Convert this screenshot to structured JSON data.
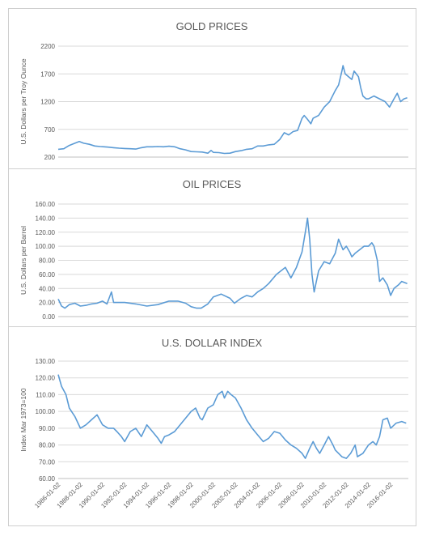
{
  "chart_data": [
    {
      "type": "line",
      "title": "GOLD PRICES",
      "ylabel": "U.S. Dollars per Troy Ounce",
      "ylim": [
        200,
        2200
      ],
      "yticks": [
        "200",
        "700",
        "1200",
        "1700",
        "2200"
      ],
      "xlim": [
        1986.0,
        2017.6
      ],
      "grid": true,
      "color": "#5b9bd5",
      "series": [
        {
          "x": [
            1986.0,
            1986.5,
            1987.0,
            1987.5,
            1987.9,
            1988.3,
            1988.8,
            1989.3,
            1989.8,
            1990.5,
            1991.0,
            1991.5,
            1992.0,
            1992.5,
            1993.0,
            1993.5,
            1994.0,
            1994.5,
            1995.0,
            1995.5,
            1996.0,
            1996.5,
            1997.0,
            1997.5,
            1998.0,
            1998.5,
            1999.0,
            1999.5,
            1999.8,
            2000.0,
            2000.5,
            2001.0,
            2001.5,
            2002.0,
            2002.5,
            2003.0,
            2003.5,
            2004.0,
            2004.5,
            2005.0,
            2005.5,
            2006.0,
            2006.4,
            2006.8,
            2007.2,
            2007.6,
            2008.0,
            2008.2,
            2008.5,
            2008.8,
            2009.0,
            2009.5,
            2010.0,
            2010.5,
            2011.0,
            2011.3,
            2011.6,
            2011.7,
            2011.9,
            2012.2,
            2012.5,
            2012.7,
            2012.9,
            2013.1,
            2013.3,
            2013.5,
            2013.8,
            2014.0,
            2014.5,
            2015.0,
            2015.5,
            2015.9,
            2016.3,
            2016.6,
            2016.9,
            2017.2,
            2017.5
          ],
          "y": [
            340,
            350,
            410,
            450,
            480,
            450,
            430,
            400,
            390,
            380,
            370,
            360,
            355,
            350,
            345,
            370,
            385,
            385,
            390,
            385,
            395,
            385,
            350,
            330,
            300,
            295,
            290,
            270,
            320,
            285,
            280,
            265,
            270,
            300,
            315,
            340,
            350,
            400,
            400,
            420,
            430,
            520,
            640,
            600,
            660,
            680,
            900,
            950,
            880,
            800,
            900,
            950,
            1100,
            1200,
            1400,
            1500,
            1750,
            1850,
            1700,
            1650,
            1600,
            1750,
            1700,
            1650,
            1450,
            1300,
            1250,
            1250,
            1300,
            1250,
            1200,
            1100,
            1250,
            1350,
            1200,
            1250,
            1270
          ]
        }
      ]
    },
    {
      "type": "line",
      "title": "OIL PRICES",
      "ylabel": "U.S. Dollars per Barrel",
      "ylim": [
        0,
        160
      ],
      "yticks": [
        "0.00",
        "20.00",
        "40.00",
        "60.00",
        "80.00",
        "100.00",
        "120.00",
        "140.00",
        "160.00"
      ],
      "xlim": [
        1986.0,
        2017.6
      ],
      "grid": true,
      "color": "#5b9bd5",
      "series": [
        {
          "x": [
            1986.0,
            1986.3,
            1986.6,
            1987.0,
            1987.5,
            1988.0,
            1988.5,
            1989.0,
            1989.5,
            1990.0,
            1990.4,
            1990.8,
            1991.0,
            1991.5,
            1992.0,
            1993.0,
            1994.0,
            1995.0,
            1996.0,
            1996.8,
            1997.5,
            1998.0,
            1998.5,
            1998.9,
            1999.5,
            2000.0,
            2000.7,
            2001.5,
            2001.9,
            2002.5,
            2003.0,
            2003.5,
            2004.0,
            2004.5,
            2005.0,
            2005.7,
            2006.5,
            2007.0,
            2007.5,
            2008.0,
            2008.3,
            2008.5,
            2008.7,
            2008.9,
            2009.1,
            2009.5,
            2010.0,
            2010.5,
            2011.0,
            2011.3,
            2011.7,
            2012.0,
            2012.3,
            2012.5,
            2012.8,
            2013.2,
            2013.6,
            2014.0,
            2014.3,
            2014.5,
            2014.8,
            2015.0,
            2015.3,
            2015.7,
            2016.0,
            2016.3,
            2016.7,
            2017.0,
            2017.5
          ],
          "y": [
            25,
            15,
            12,
            17,
            19,
            15,
            16,
            18,
            19,
            22,
            18,
            35,
            20,
            20,
            20,
            18,
            15,
            17,
            22,
            22,
            19,
            14,
            12,
            12,
            18,
            28,
            32,
            26,
            19,
            26,
            30,
            28,
            35,
            40,
            47,
            60,
            70,
            55,
            70,
            92,
            120,
            140,
            110,
            60,
            35,
            65,
            78,
            75,
            90,
            110,
            95,
            100,
            92,
            85,
            90,
            95,
            100,
            100,
            105,
            100,
            80,
            50,
            55,
            45,
            30,
            40,
            45,
            50,
            47
          ]
        }
      ]
    },
    {
      "type": "line",
      "title": "U.S. DOLLAR INDEX",
      "ylabel": "Index Mar 1973=100",
      "ylim": [
        60,
        130
      ],
      "yticks": [
        "60.00",
        "70.00",
        "80.00",
        "90.00",
        "100.00",
        "110.00",
        "120.00",
        "130.00"
      ],
      "xlim": [
        1986.0,
        2017.6
      ],
      "categories": [
        "1986-01-02",
        "1988-01-02",
        "1990-01-02",
        "1992-01-02",
        "1994-01-02",
        "1996-01-02",
        "1998-01-02",
        "2000-01-02",
        "2002-01-02",
        "2004-01-02",
        "2006-01-02",
        "2008-01-02",
        "2010-01-02",
        "2012-01-02",
        "2014-01-02",
        "2016-01-02"
      ],
      "grid": true,
      "color": "#5b9bd5",
      "series": [
        {
          "x": [
            1986.0,
            1986.3,
            1986.7,
            1987.0,
            1987.5,
            1988.0,
            1988.5,
            1989.0,
            1989.5,
            1990.0,
            1990.5,
            1991.0,
            1991.3,
            1991.7,
            1992.0,
            1992.5,
            1993.0,
            1993.5,
            1994.0,
            1994.5,
            1995.0,
            1995.3,
            1995.6,
            1996.0,
            1996.5,
            1997.0,
            1997.5,
            1998.0,
            1998.4,
            1998.8,
            1999.0,
            1999.5,
            2000.0,
            2000.4,
            2000.8,
            2001.0,
            2001.3,
            2001.6,
            2002.0,
            2002.5,
            2003.0,
            2003.5,
            2004.0,
            2004.5,
            2005.0,
            2005.5,
            2006.0,
            2006.5,
            2007.0,
            2007.5,
            2008.0,
            2008.3,
            2008.7,
            2009.0,
            2009.3,
            2009.6,
            2010.0,
            2010.4,
            2010.8,
            2011.0,
            2011.3,
            2011.6,
            2012.0,
            2012.4,
            2012.8,
            2013.0,
            2013.5,
            2014.0,
            2014.4,
            2014.7,
            2015.0,
            2015.3,
            2015.7,
            2016.0,
            2016.5,
            2017.0,
            2017.4
          ],
          "y": [
            122,
            115,
            110,
            102,
            97,
            90,
            92,
            95,
            98,
            92,
            90,
            90,
            88,
            85,
            82,
            88,
            90,
            85,
            92,
            88,
            84,
            81,
            85,
            86,
            88,
            92,
            96,
            100,
            102,
            96,
            95,
            102,
            104,
            110,
            112,
            108,
            112,
            110,
            108,
            102,
            95,
            90,
            86,
            82,
            84,
            88,
            87,
            83,
            80,
            78,
            75,
            72,
            78,
            82,
            78,
            75,
            80,
            85,
            80,
            77,
            75,
            73,
            72,
            75,
            80,
            73,
            75,
            80,
            82,
            80,
            85,
            95,
            96,
            90,
            93,
            94,
            93
          ]
        }
      ]
    }
  ]
}
